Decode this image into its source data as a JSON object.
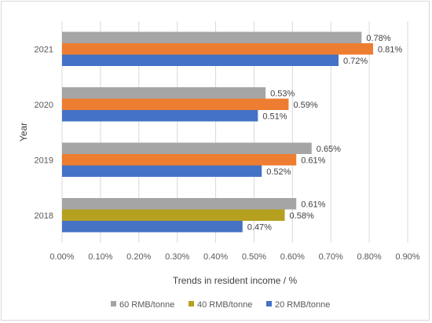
{
  "chart_data": {
    "type": "bar",
    "orientation": "horizontal",
    "categories": [
      "2018",
      "2019",
      "2020",
      "2021"
    ],
    "series": [
      {
        "name": "60 RMB/tonne",
        "color": "#a5a5a5",
        "values": [
          0.61,
          0.65,
          0.53,
          0.78
        ],
        "labels": [
          "0.61%",
          "0.65%",
          "0.53%",
          "0.78%"
        ]
      },
      {
        "name": "40 RMB/tonne",
        "color": "#ed7d31",
        "values": [
          0.58,
          0.61,
          0.59,
          0.81
        ],
        "labels": [
          "0.58%",
          "0.61%",
          "0.59%",
          "0.81%"
        ]
      },
      {
        "name": "20 RMB/tonne",
        "color": "#4472c4",
        "values": [
          0.47,
          0.52,
          0.51,
          0.72
        ],
        "labels": [
          "0.47%",
          "0.52%",
          "0.51%",
          "0.72%"
        ]
      }
    ],
    "xlim": [
      0,
      0.9
    ],
    "xticks": [
      "0.00%",
      "0.10%",
      "0.20%",
      "0.30%",
      "0.40%",
      "0.50%",
      "0.60%",
      "0.70%",
      "0.80%",
      "0.90%"
    ],
    "xlabel": "Trends in resident income / %",
    "ylabel": "Year",
    "grid": "vertical",
    "legend_position": "bottom",
    "legend_order": [
      "60 RMB/tonne",
      "40 RMB/tonne",
      "20 RMB/tonne"
    ],
    "highlight_bar": {
      "category": "2018",
      "series": "40 RMB/tonne",
      "color": "#b5a020"
    }
  }
}
